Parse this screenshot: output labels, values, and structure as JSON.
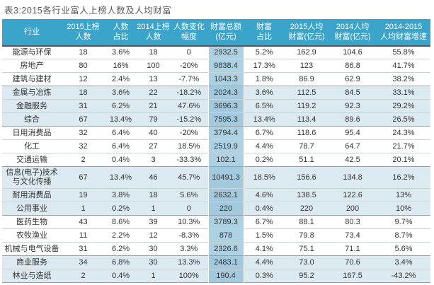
{
  "title": "表3:2015各行业富人上榜人数及人均财富",
  "colors": {
    "header_bg": "#3aa4cb",
    "header_text": "#ffffff",
    "row_stripe": "#dbe9f0",
    "wealth_column_highlight": "#acd1e3",
    "wealth_column_highlight_striped": "#a2c9dd",
    "title_text": "#595959"
  },
  "chart_data": {
    "type": "table",
    "title": "表3:2015各行业富人上榜人数及人均财富",
    "highlight_column_index": 5,
    "columns": [
      {
        "label": "行业",
        "lines": [
          "行业"
        ]
      },
      {
        "label": "2015上榜人数",
        "lines": [
          "2015上榜",
          "人数"
        ]
      },
      {
        "label": "人数占比",
        "lines": [
          "人数",
          "占比"
        ]
      },
      {
        "label": "2014上榜人数",
        "lines": [
          "2014上榜",
          "人数"
        ]
      },
      {
        "label": "人数变化幅度",
        "lines": [
          "人数变化",
          "幅度"
        ]
      },
      {
        "label": "财富总额(亿元)",
        "lines": [
          "财富总额",
          "(亿元)"
        ]
      },
      {
        "label": "财富占比",
        "lines": [
          "财富",
          "占比"
        ]
      },
      {
        "label": "2015人均财富(亿元)",
        "lines": [
          "2015人均",
          "财富(亿元)"
        ]
      },
      {
        "label": "2014人均财富(亿元)",
        "lines": [
          "2014人均",
          "财富(亿元)"
        ]
      },
      {
        "label": "2014-2015人均财富增速",
        "lines": [
          "2014-2015",
          "人均财富增速"
        ]
      }
    ],
    "rows": [
      [
        "能源与环保",
        "18",
        "3.6%",
        "18",
        "0",
        "2932.5",
        "5.2%",
        "162.9",
        "104.6",
        "55.8%"
      ],
      [
        "房地产",
        "80",
        "16%",
        "100",
        "-20%",
        "9838.4",
        "17.3%",
        "123",
        "86.8",
        "41.7%"
      ],
      [
        "建筑与建材",
        "12",
        "2.4%",
        "13",
        "-7.7%",
        "1043.3",
        "1.8%",
        "86.9",
        "62.9",
        "38.2%"
      ],
      [
        "金属与冶炼",
        "18",
        "3.6%",
        "22",
        "-18.2%",
        "2024.3",
        "3.6%",
        "112.5",
        "84.5",
        "33.1%"
      ],
      [
        "金融服务",
        "31",
        "6.2%",
        "21",
        "47.6%",
        "3696.3",
        "6.5%",
        "119.2",
        "92.3",
        "29.2%"
      ],
      [
        "综合",
        "67",
        "13.4%",
        "79",
        "-15.2%",
        "7595.3",
        "13.4%",
        "113.4",
        "89.6",
        "26.5%"
      ],
      [
        "日用消费品",
        "32",
        "6.4%",
        "40",
        "-20%",
        "3794.4",
        "6.7%",
        "118.6",
        "95.4",
        "24.3%"
      ],
      [
        "化工",
        "32",
        "6.4%",
        "27",
        "18.5%",
        "2519.9",
        "4.4%",
        "78.7",
        "64.7",
        "21.7%"
      ],
      [
        "交通运输",
        "2",
        "0.4%",
        "3",
        "-33.3%",
        "102.1",
        "0.2%",
        "51.1",
        "42.5",
        "20.1%"
      ],
      [
        "信息(电子)技术与文化传播",
        "67",
        "13.4%",
        "46",
        "45.7%",
        "10491.3",
        "18.5%",
        "156.6",
        "134.8",
        "16.2%"
      ],
      [
        "耐用消费品",
        "19",
        "3.8%",
        "18",
        "5.6%",
        "2632.1",
        "4.6%",
        "138.5",
        "122.6",
        "13%"
      ],
      [
        "公用事业",
        "1",
        "0.2%",
        "1",
        "0",
        "220",
        "0.4%",
        "220",
        "200",
        "10%"
      ],
      [
        "医药生物",
        "43",
        "8.6%",
        "39",
        "10.3%",
        "3789.3",
        "6.7%",
        "88.1",
        "80.3",
        "9.7%"
      ],
      [
        "农牧渔业",
        "11",
        "2.2%",
        "12",
        "-8.3%",
        "878",
        "1.5%",
        "79.8",
        "73.4",
        "8.7%"
      ],
      [
        "机械与电气设备",
        "31",
        "6.2%",
        "30",
        "3.3%",
        "2326.6",
        "4.1%",
        "75.1",
        "71.1",
        "5.6%"
      ],
      [
        "商业服务",
        "34",
        "6.8%",
        "30",
        "13.3%",
        "2483.1",
        "4.4%",
        "73.0",
        "70.6",
        "3.4%"
      ],
      [
        "林业与造纸",
        "2",
        "0.4%",
        "1",
        "100%",
        "190.4",
        "0.3%",
        "95.2",
        "167.5",
        "-43.2%"
      ]
    ]
  }
}
